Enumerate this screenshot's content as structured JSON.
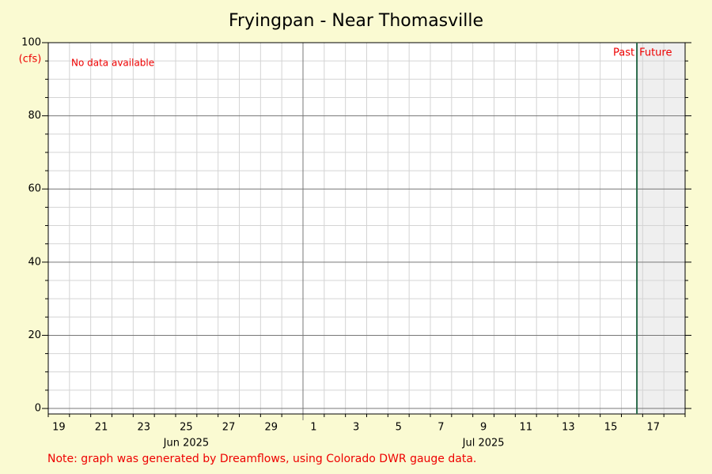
{
  "chart_data": {
    "type": "line",
    "title": "Fryingpan - Near Thomasville",
    "y_unit": "(cfs)",
    "annotation": "No data available",
    "past_label": "Past",
    "future_label": "Future",
    "now": "2025-07-16T17:30Z",
    "note": "Note: graph was generated by Dreamflows, using Colorado DWR gauge data.",
    "series": [],
    "xlim": [
      "2025-06-19",
      "2025-07-19"
    ],
    "xticks": [
      {
        "value": "2025-06-19",
        "label": "19"
      },
      {
        "value": "2025-06-21",
        "label": "21"
      },
      {
        "value": "2025-06-23",
        "label": "23"
      },
      {
        "value": "2025-06-25",
        "label": "25"
      },
      {
        "value": "2025-06-27",
        "label": "27"
      },
      {
        "value": "2025-06-29",
        "label": "29"
      },
      {
        "value": "2025-07-01",
        "label": "1"
      },
      {
        "value": "2025-07-03",
        "label": "3"
      },
      {
        "value": "2025-07-05",
        "label": "5"
      },
      {
        "value": "2025-07-07",
        "label": "7"
      },
      {
        "value": "2025-07-09",
        "label": "9"
      },
      {
        "value": "2025-07-11",
        "label": "11"
      },
      {
        "value": "2025-07-13",
        "label": "13"
      },
      {
        "value": "2025-07-15",
        "label": "15"
      },
      {
        "value": "2025-07-17",
        "label": "17"
      }
    ],
    "month_labels": [
      {
        "value": "2025-06-25",
        "label": "Jun 2025"
      },
      {
        "value": "2025-07-09",
        "label": "Jul 2025"
      }
    ],
    "month_boundary": "2025-07-01",
    "ylim": [
      -1.5,
      100
    ],
    "yticks": [
      0,
      20,
      40,
      60,
      80,
      100
    ],
    "yminor_ticks": [
      5,
      10,
      15,
      25,
      30,
      35,
      45,
      50,
      55,
      65,
      70,
      75,
      85,
      90,
      95
    ],
    "grid": true
  }
}
